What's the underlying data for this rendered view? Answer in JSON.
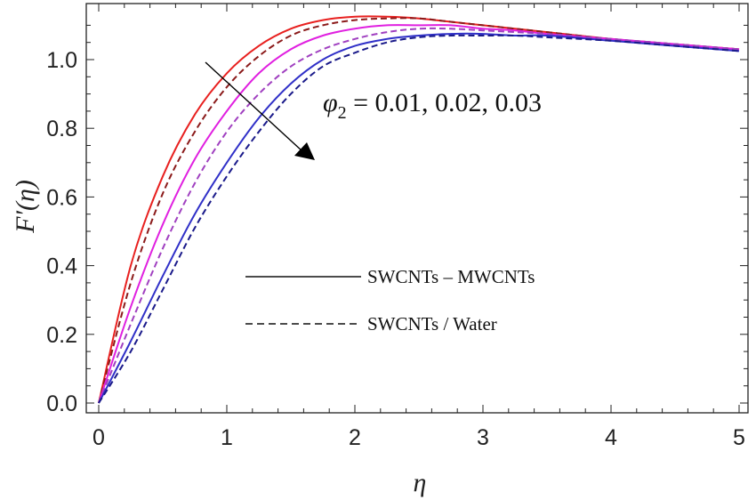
{
  "chart_data": {
    "type": "line",
    "title": "",
    "xlabel": "η",
    "ylabel": "F′(η)",
    "xlim": [
      0,
      5
    ],
    "ylim": [
      0,
      1.13
    ],
    "grid": false,
    "x_ticks": [
      "0",
      "1",
      "2",
      "3",
      "4",
      "5"
    ],
    "y_ticks": [
      "0.0",
      "0.2",
      "0.4",
      "0.6",
      "0.8",
      "1.0"
    ],
    "x": [
      0,
      0.25,
      0.5,
      0.75,
      1,
      1.25,
      1.5,
      1.75,
      2,
      2.25,
      2.5,
      2.75,
      3,
      3.25,
      3.5,
      4,
      4.5,
      5
    ],
    "series": [
      {
        "color": "#e8201f",
        "style": "solid",
        "values": [
          0,
          0.4,
          0.66,
          0.84,
          0.96,
          1.04,
          1.09,
          1.115,
          1.125,
          1.125,
          1.12,
          1.11,
          1.1,
          1.09,
          1.08,
          1.06,
          1.045,
          1.03
        ]
      },
      {
        "color": "#8b1a1a",
        "style": "dashed",
        "values": [
          0,
          0.35,
          0.61,
          0.79,
          0.92,
          1.01,
          1.07,
          1.1,
          1.115,
          1.12,
          1.12,
          1.11,
          1.1,
          1.09,
          1.08,
          1.06,
          1.045,
          1.03
        ]
      },
      {
        "color": "#e020e0",
        "style": "solid",
        "values": [
          0,
          0.28,
          0.52,
          0.71,
          0.85,
          0.96,
          1.03,
          1.07,
          1.09,
          1.1,
          1.1,
          1.1,
          1.09,
          1.085,
          1.075,
          1.06,
          1.045,
          1.03
        ]
      },
      {
        "color": "#a040c0",
        "style": "dashed",
        "values": [
          0,
          0.23,
          0.45,
          0.64,
          0.79,
          0.9,
          0.98,
          1.03,
          1.06,
          1.08,
          1.09,
          1.09,
          1.085,
          1.08,
          1.075,
          1.06,
          1.045,
          1.03
        ]
      },
      {
        "color": "#3030c8",
        "style": "solid",
        "values": [
          0,
          0.18,
          0.37,
          0.55,
          0.7,
          0.83,
          0.93,
          1.0,
          1.04,
          1.06,
          1.07,
          1.075,
          1.075,
          1.07,
          1.07,
          1.055,
          1.04,
          1.025
        ]
      },
      {
        "color": "#1a1a8a",
        "style": "dashed",
        "values": [
          0,
          0.15,
          0.33,
          0.51,
          0.66,
          0.79,
          0.9,
          0.98,
          1.02,
          1.05,
          1.065,
          1.07,
          1.07,
          1.07,
          1.065,
          1.055,
          1.04,
          1.025
        ]
      }
    ],
    "legend": [
      {
        "label": "SWCNTs – MWCNTs",
        "style": "solid"
      },
      {
        "label": "SWCNTs / Water",
        "style": "dashed"
      }
    ],
    "legend_placement": "center-right",
    "annotation": {
      "prefix": "φ",
      "subscript": "2",
      "values": " = 0.01, 0.02, 0.03"
    },
    "colors": {
      "axis": "#222222",
      "legend_line": "#111111",
      "arrow": "#000000"
    }
  }
}
